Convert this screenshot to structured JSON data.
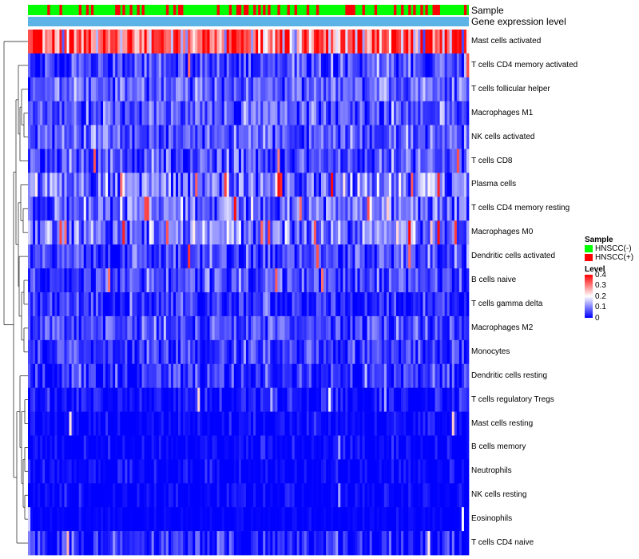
{
  "chart_data": {
    "type": "heatmap",
    "title": "",
    "annotation_tracks": [
      "Sample",
      "Gene expression level"
    ],
    "rows": [
      {
        "name": "Mast cells activated",
        "mean": 0.3,
        "spread": 0.11,
        "hot": 0.15
      },
      {
        "name": "T cells CD4 memory activated",
        "mean": 0.05,
        "spread": 0.05,
        "hot": 0.03
      },
      {
        "name": "T cells follicular helper",
        "mean": 0.08,
        "spread": 0.04,
        "hot": 0.0
      },
      {
        "name": "Macrophages M1",
        "mean": 0.07,
        "spread": 0.05,
        "hot": 0.0
      },
      {
        "name": "NK cells activated",
        "mean": 0.07,
        "spread": 0.04,
        "hot": 0.0
      },
      {
        "name": "T cells CD8",
        "mean": 0.05,
        "spread": 0.05,
        "hot": 0.02
      },
      {
        "name": "Plasma cells",
        "mean": 0.09,
        "spread": 0.06,
        "hot": 0.05
      },
      {
        "name": "T cells CD4 memory resting",
        "mean": 0.09,
        "spread": 0.05,
        "hot": 0.02
      },
      {
        "name": "Macrophages M0",
        "mean": 0.09,
        "spread": 0.06,
        "hot": 0.04
      },
      {
        "name": "Dendritic cells activated",
        "mean": 0.05,
        "spread": 0.05,
        "hot": 0.01
      },
      {
        "name": "B cells naive",
        "mean": 0.05,
        "spread": 0.04,
        "hot": 0.01
      },
      {
        "name": "T cells gamma delta",
        "mean": 0.03,
        "spread": 0.04,
        "hot": 0.01
      },
      {
        "name": "Macrophages M2",
        "mean": 0.05,
        "spread": 0.04,
        "hot": 0.0
      },
      {
        "name": "Monocytes",
        "mean": 0.04,
        "spread": 0.04,
        "hot": 0.0
      },
      {
        "name": "Dendritic cells resting",
        "mean": 0.03,
        "spread": 0.04,
        "hot": 0.0
      },
      {
        "name": "T cells regulatory  Tregs",
        "mean": 0.01,
        "spread": 0.03,
        "hot": 0.0
      },
      {
        "name": "Mast cells resting",
        "mean": 0.0,
        "spread": 0.02,
        "hot": 0.0
      },
      {
        "name": "B cells memory",
        "mean": 0.0,
        "spread": 0.02,
        "hot": 0.0
      },
      {
        "name": "Neutrophils",
        "mean": 0.0,
        "spread": 0.02,
        "hot": 0.0
      },
      {
        "name": "NK cells resting",
        "mean": 0.0,
        "spread": 0.02,
        "hot": 0.0
      },
      {
        "name": "Eosinophils",
        "mean": 0.0,
        "spread": 0.01,
        "hot": 0.0
      },
      {
        "name": "T cells CD4 naive",
        "mean": 0.02,
        "spread": 0.04,
        "hot": 0.0
      }
    ],
    "n_samples": 182,
    "positive_fraction": 0.18,
    "random_seed": 17,
    "color_scale": {
      "min": 0,
      "mid": 0.2,
      "max": 0.4,
      "low_color": "#0000ff",
      "mid_color": "#ffffff",
      "high_color": "#ff0000"
    },
    "legend": {
      "sample_title": "Sample",
      "sample_items": [
        {
          "label": "HNSCC(-)",
          "color": "#00ff00"
        },
        {
          "label": "HNSCC(+)",
          "color": "#ff0000"
        }
      ],
      "level_title": "Level",
      "level_ticks": [
        "0.4",
        "0.3",
        "0.2",
        "0.1",
        "0"
      ],
      "level_tick_values": [
        0.4,
        0.3,
        0.2,
        0.1,
        0
      ]
    },
    "gene_track_color": "#5bb4e5",
    "dendrogram_order_note": "rows clustered; hierarchical dendrogram on left"
  }
}
